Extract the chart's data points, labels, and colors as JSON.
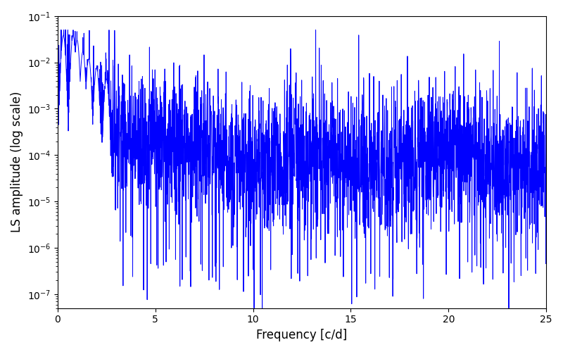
{
  "xlabel": "Frequency [c/d]",
  "ylabel": "LS amplitude (log scale)",
  "xlim": [
    0,
    25
  ],
  "ylim_log": [
    5e-08,
    0.1
  ],
  "line_color": "#0000ff",
  "line_width": 0.7,
  "freq_max": 25.0,
  "n_points": 3000,
  "seed": 7,
  "background_color": "#ffffff",
  "figsize": [
    8.0,
    5.0
  ],
  "dpi": 100
}
